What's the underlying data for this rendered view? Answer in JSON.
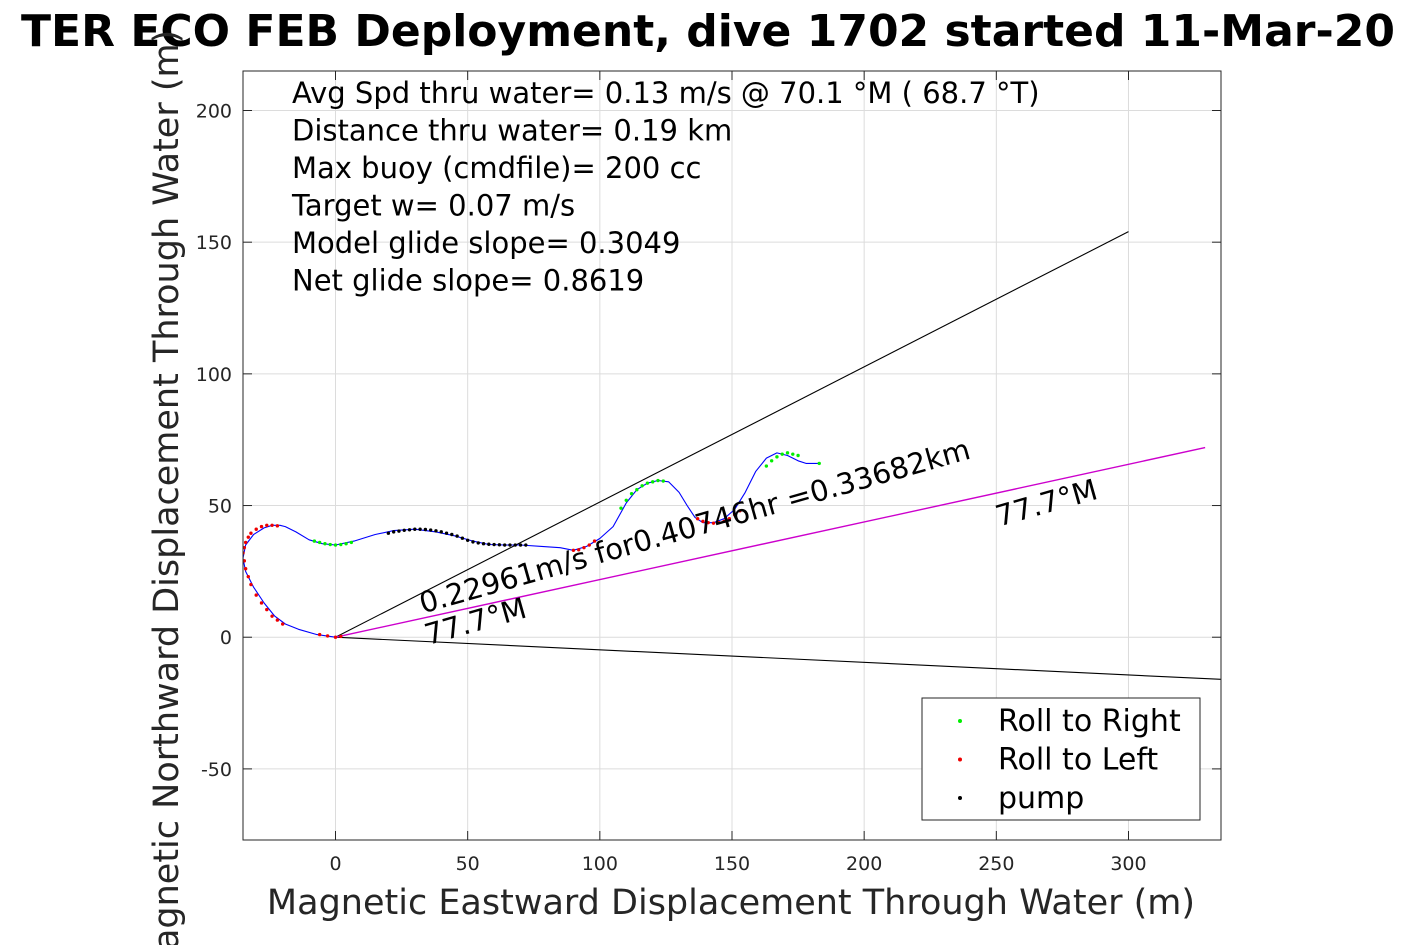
{
  "chart_data": {
    "type": "line",
    "title": "TER ECO FEB Deployment, dive 1702 started 11-Mar-20",
    "xlabel": "Magnetic Eastward Displacement Through Water (m)",
    "ylabel": "Magnetic Northward Displacement Through Water (m)",
    "xlim": [
      -35,
      335
    ],
    "ylim": [
      -77,
      215
    ],
    "xticks": [
      0,
      50,
      100,
      150,
      200,
      250,
      300
    ],
    "yticks": [
      -50,
      0,
      50,
      100,
      150,
      200
    ],
    "grid": true,
    "info_lines": [
      "Avg Spd thru water=  0.13 m/s @  70.1 °M ( 68.7 °T)",
      "Distance thru water=  0.19 km",
      "Max buoy (cmdfile)= 200 cc",
      "Target w= 0.07 m/s",
      "Model glide slope= 0.3049",
      "Net glide slope= 0.8619"
    ],
    "annotations": [
      {
        "text": "0.22961m/s for0.40746hr =0.33682km",
        "x": 33,
        "y": 9,
        "angle": -15.8
      },
      {
        "text": "77.7°M",
        "x": 35,
        "y": -3,
        "angle": -15.8
      },
      {
        "text": "77.7°M",
        "x": 251,
        "y": 42,
        "angle": -15.8
      }
    ],
    "reference_lines": [
      {
        "name": "upper glide cone",
        "color": "#000000",
        "x": [
          0,
          300
        ],
        "y": [
          0,
          154
        ]
      },
      {
        "name": "lower glide cone",
        "color": "#000000",
        "x": [
          0,
          335
        ],
        "y": [
          0,
          -16
        ]
      },
      {
        "name": "current vector",
        "color": "#cc00cc",
        "x": [
          0,
          329
        ],
        "y": [
          0,
          72
        ]
      }
    ],
    "track": {
      "color": "#0000ff",
      "x": [
        0,
        -7,
        -14,
        -19,
        -23,
        -27,
        -31,
        -34,
        -35,
        -34,
        -31,
        -27,
        -24,
        -21,
        -19,
        -15,
        -10,
        -5,
        0,
        7,
        15,
        22,
        30,
        38,
        45,
        52,
        58,
        64,
        70,
        78,
        85,
        90,
        95,
        100,
        105,
        110,
        114,
        118,
        122,
        126,
        130,
        133,
        136,
        139,
        143,
        147,
        151,
        155,
        159,
        163,
        167,
        171,
        175,
        178,
        180,
        183
      ],
      "y": [
        0,
        1,
        3,
        5,
        8,
        13,
        19,
        25,
        30,
        35,
        39,
        41.5,
        42.5,
        42.5,
        42,
        40,
        37,
        35.5,
        35,
        36.5,
        39,
        40.5,
        41,
        40,
        38.5,
        36.5,
        35.2,
        35,
        35,
        34.5,
        34,
        33,
        34.5,
        37.5,
        42,
        51,
        56,
        58.5,
        59.5,
        59,
        55,
        50,
        45.5,
        43.5,
        43.5,
        45,
        48.5,
        55,
        63,
        68,
        70,
        69,
        67,
        66,
        66,
        66
      ]
    },
    "series": [
      {
        "name": "Roll to Right",
        "color": "#00ee00",
        "x": [
          -8,
          -6,
          -4,
          -2,
          0,
          2,
          4,
          6,
          108,
          110,
          112,
          114,
          116,
          118,
          120,
          122,
          124,
          163,
          165,
          167,
          169,
          171,
          173,
          175,
          183
        ],
        "y": [
          36.5,
          36,
          35.5,
          35.2,
          35,
          35.2,
          35.5,
          36,
          49,
          52,
          54.5,
          56,
          57.5,
          58.5,
          59,
          59.5,
          59.3,
          65,
          67,
          68.5,
          69.5,
          70,
          69.5,
          69,
          66
        ]
      },
      {
        "name": "Roll to Left",
        "color": "#ee0000",
        "x": [
          -6,
          -3,
          0,
          2,
          -20,
          -22,
          -24,
          -26,
          -28,
          -30,
          -32,
          -33,
          -34,
          -34.5,
          -35,
          -34.5,
          -34,
          -33,
          -32,
          -30,
          -28,
          -26,
          -24,
          -22,
          90,
          92,
          94,
          96,
          98,
          137,
          139,
          141,
          143,
          145,
          147,
          149,
          151,
          153
        ],
        "y": [
          1,
          0.5,
          0,
          0.3,
          5,
          6.5,
          8,
          10.5,
          13,
          16,
          20,
          23,
          26,
          29,
          32,
          34,
          36,
          38,
          39.5,
          41,
          42,
          42.5,
          42.5,
          42.3,
          33,
          33.2,
          34,
          35,
          36.5,
          45,
          44,
          43.5,
          43.3,
          43.5,
          44,
          45,
          46.5,
          48
        ]
      },
      {
        "name": "pump",
        "color": "#000000",
        "x": [
          20,
          22,
          24,
          26,
          28,
          30,
          32,
          34,
          36,
          38,
          40,
          42,
          44,
          46,
          48,
          50,
          52,
          54,
          56,
          58,
          60,
          62,
          64,
          66,
          68,
          70,
          72
        ],
        "y": [
          39.5,
          40,
          40.3,
          40.6,
          40.8,
          41,
          41,
          40.9,
          40.7,
          40.4,
          40,
          39.5,
          39,
          38.4,
          37.6,
          36.8,
          36.2,
          35.8,
          35.5,
          35.3,
          35.2,
          35.1,
          35,
          35,
          35,
          35,
          35
        ]
      }
    ],
    "legend": {
      "placement": "bottom-right",
      "entries": [
        "Roll to Right",
        "Roll to Left",
        "pump"
      ]
    }
  }
}
